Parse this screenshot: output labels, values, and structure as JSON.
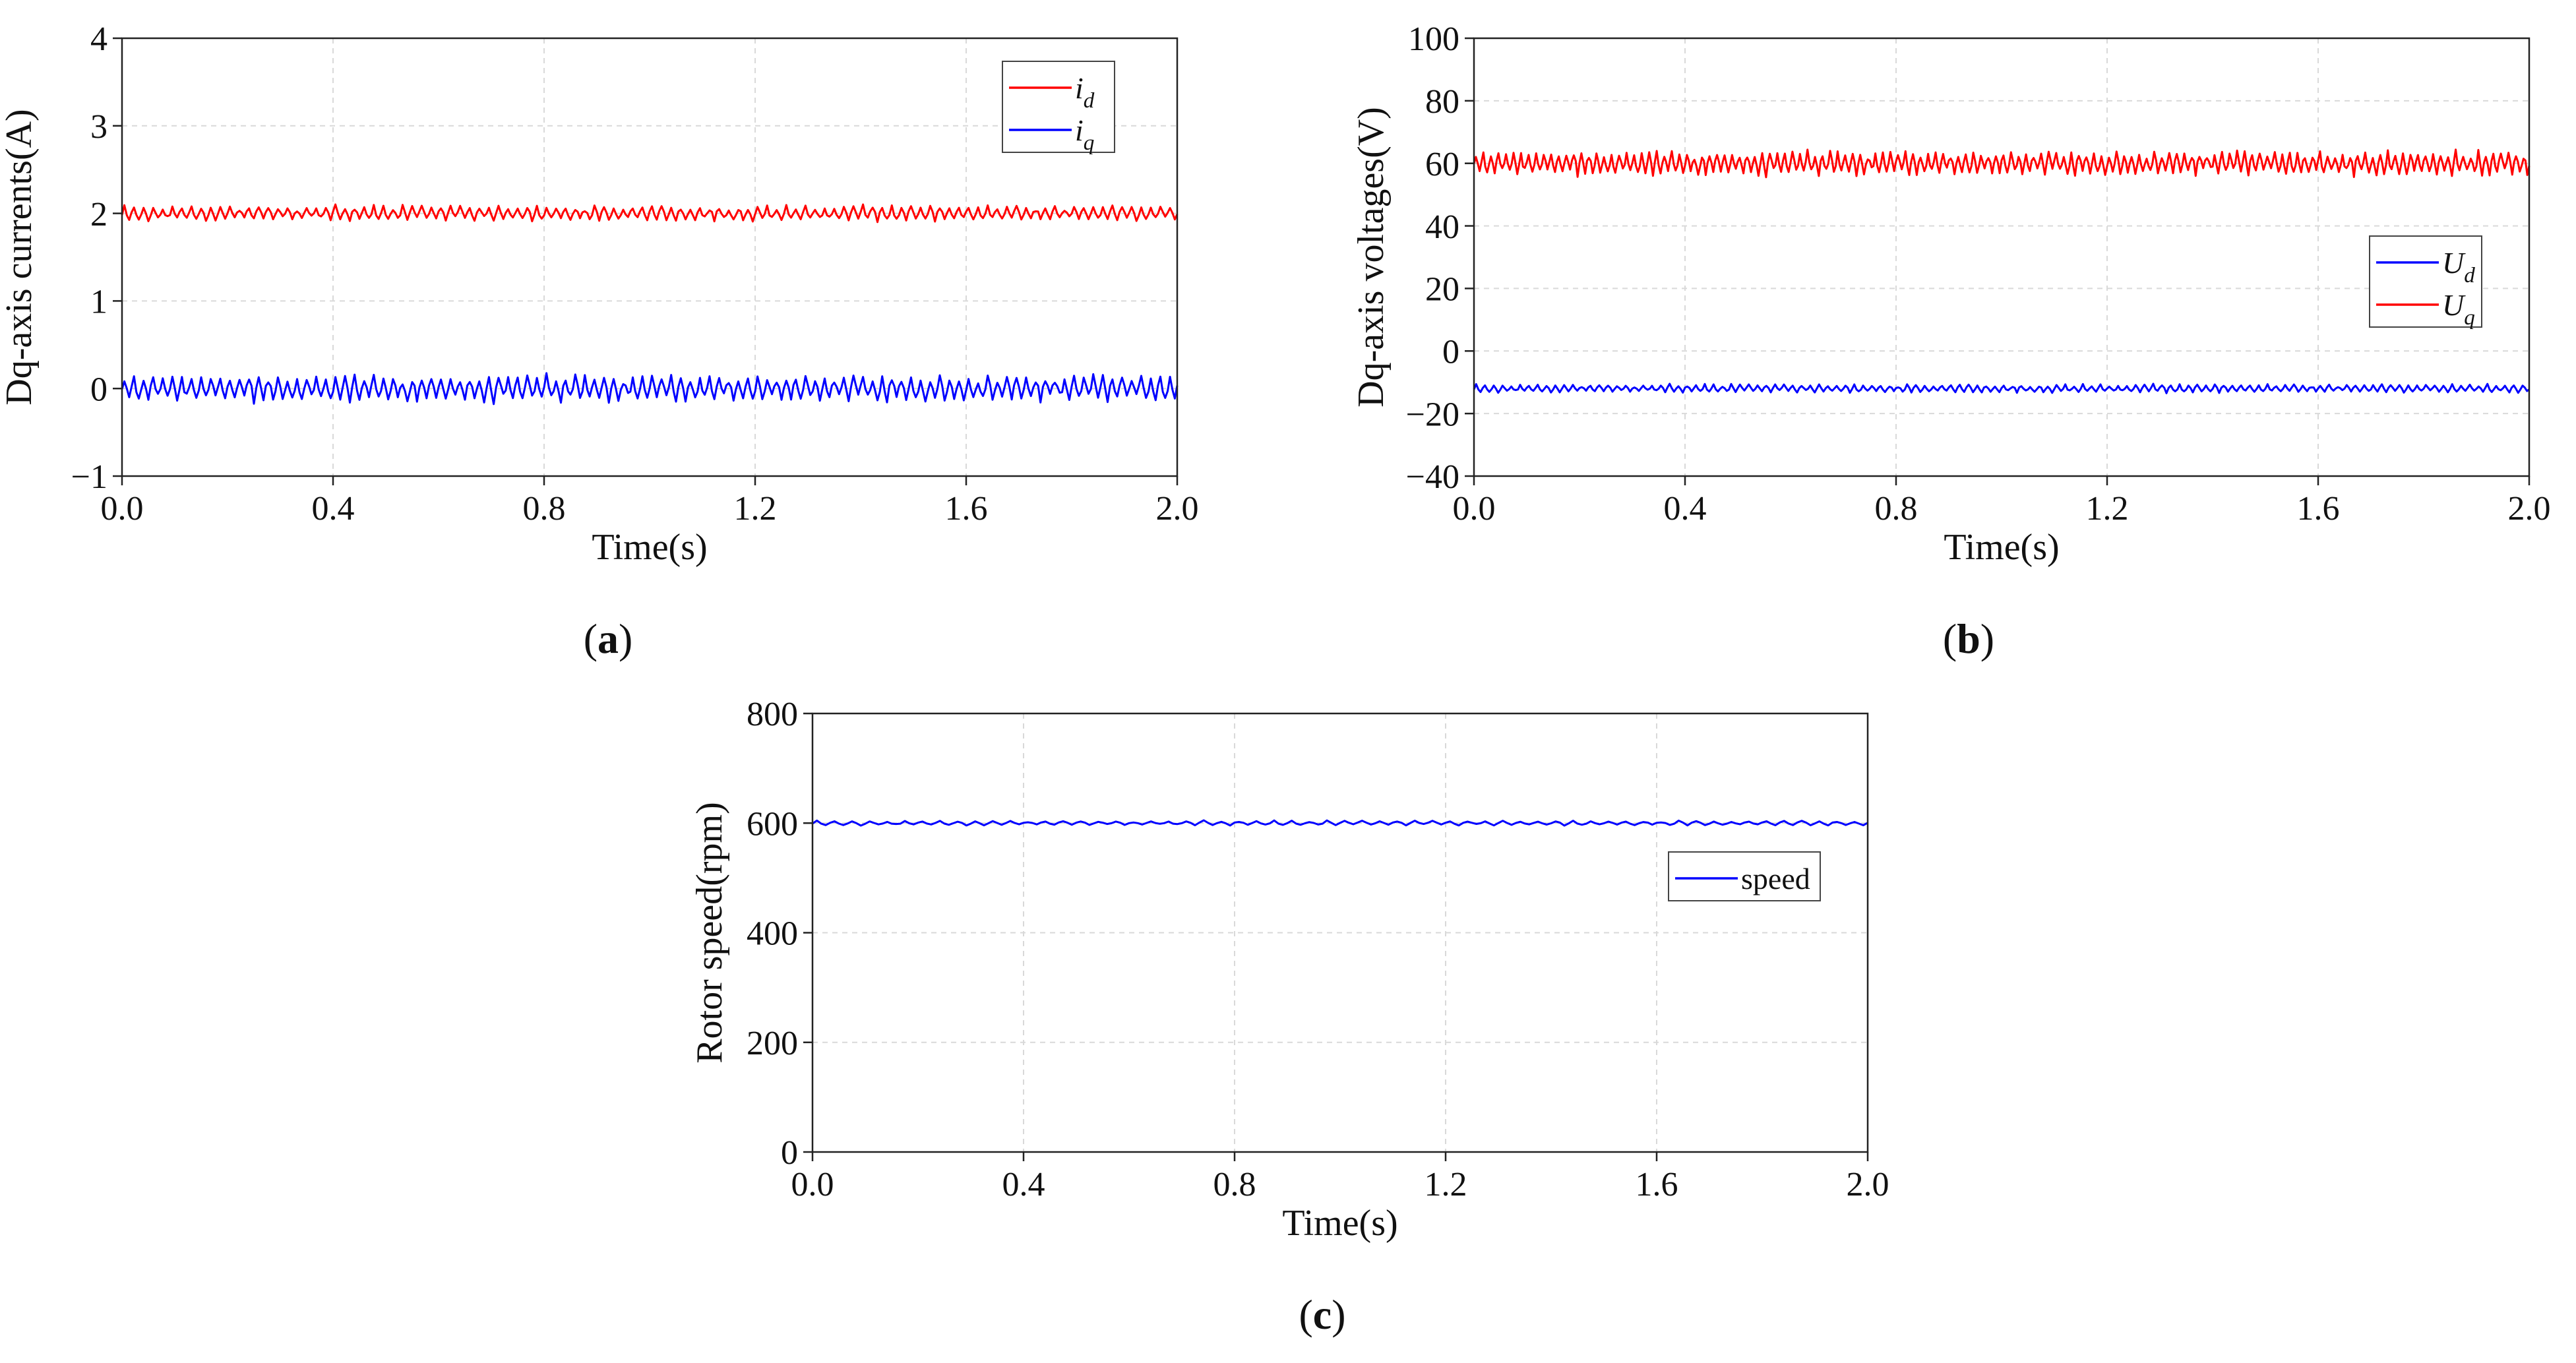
{
  "chart_data": [
    {
      "id": "a",
      "type": "line",
      "caption": "(a)",
      "caption_letter": "a",
      "xlabel": "Time(s)",
      "ylabel": "Dq-axis currents(A)",
      "xlim": [
        0,
        2.0
      ],
      "ylim": [
        -1,
        4
      ],
      "xticks": [
        0.0,
        0.4,
        0.8,
        1.2,
        1.6,
        2.0
      ],
      "xtick_labels": [
        "0.0",
        "0.4",
        "0.8",
        "1.2",
        "1.6",
        "2.0"
      ],
      "yticks": [
        -1,
        0,
        1,
        2,
        3,
        4
      ],
      "ytick_labels": [
        "−1",
        "0",
        "1",
        "2",
        "3",
        "4"
      ],
      "grid": true,
      "legend_position": "top-right",
      "series": [
        {
          "name": "i_d",
          "label_main": "i",
          "label_sub": "d",
          "color": "#ff0000",
          "mean": 2.0,
          "ripple": 0.08,
          "ripple_cycles": 110
        },
        {
          "name": "i_q",
          "label_main": "i",
          "label_sub": "q",
          "color": "#0000ff",
          "mean": 0.0,
          "ripple": 0.14,
          "ripple_cycles": 110
        }
      ]
    },
    {
      "id": "b",
      "type": "line",
      "caption": "(b)",
      "caption_letter": "b",
      "xlabel": "Time(s)",
      "ylabel": "Dq-axis voltages(V)",
      "xlim": [
        0,
        2.0
      ],
      "ylim": [
        -40,
        100
      ],
      "xticks": [
        0.0,
        0.4,
        0.8,
        1.2,
        1.6,
        2.0
      ],
      "xtick_labels": [
        "0.0",
        "0.4",
        "0.8",
        "1.2",
        "1.6",
        "2.0"
      ],
      "yticks": [
        -40,
        -20,
        0,
        20,
        40,
        60,
        80,
        100
      ],
      "ytick_labels": [
        "−40",
        "−20",
        "0",
        "20",
        "40",
        "60",
        "80",
        "100"
      ],
      "grid": true,
      "legend_position": "center-right",
      "series": [
        {
          "name": "U_d",
          "label_main": "U",
          "label_sub": "d",
          "color": "#0000ff",
          "mean": -12.0,
          "ripple": 1.2,
          "ripple_cycles": 120
        },
        {
          "name": "U_q",
          "label_main": "U",
          "label_sub": "q",
          "color": "#ff0000",
          "mean": 60.0,
          "ripple": 3.5,
          "ripple_cycles": 140
        }
      ]
    },
    {
      "id": "c",
      "type": "line",
      "caption": "(c)",
      "caption_letter": "c",
      "xlabel": "Time(s)",
      "ylabel": "Rotor speed(rpm)",
      "xlim": [
        0,
        2.0
      ],
      "ylim": [
        0,
        800
      ],
      "xticks": [
        0.0,
        0.4,
        0.8,
        1.2,
        1.6,
        2.0
      ],
      "xtick_labels": [
        "0.0",
        "0.4",
        "0.8",
        "1.2",
        "1.6",
        "2.0"
      ],
      "yticks": [
        0,
        200,
        400,
        600,
        800
      ],
      "ytick_labels": [
        "0",
        "200",
        "400",
        "600",
        "800"
      ],
      "grid": true,
      "legend_position": "center-right",
      "series": [
        {
          "name": "speed",
          "label_main": "speed",
          "label_sub": "",
          "color": "#0000ff",
          "mean": 600,
          "ripple": 4,
          "ripple_cycles": 60
        }
      ]
    }
  ]
}
